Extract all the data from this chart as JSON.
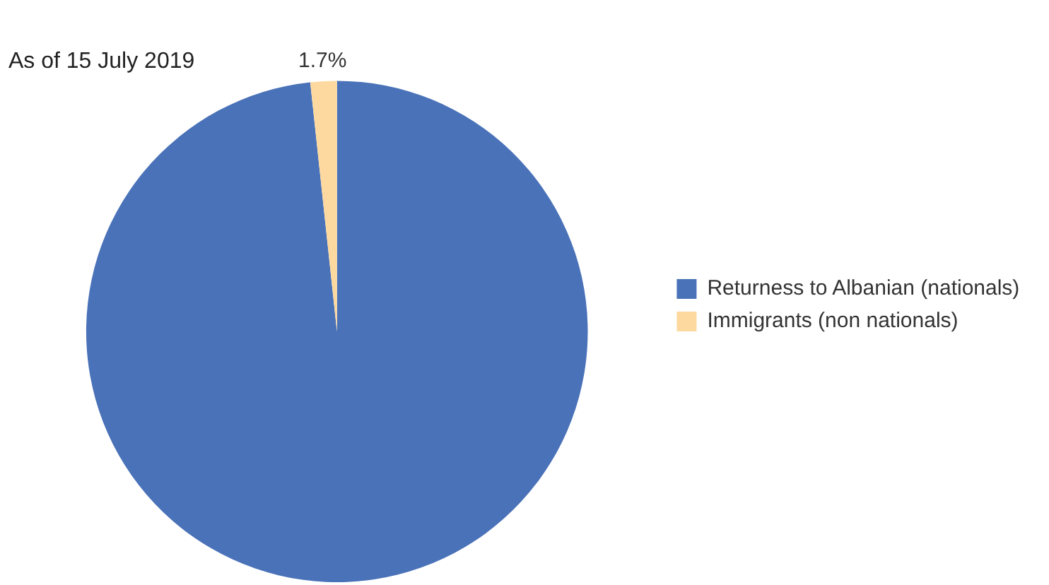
{
  "chart_data": {
    "type": "pie",
    "title": "As of 15 July 2019",
    "categories": [
      "Returness to Albanian (nationals)",
      "Immigrants (non nationals)"
    ],
    "values": [
      98.3,
      1.7
    ],
    "colors": [
      "#4a72b8",
      "#fdd9a0"
    ],
    "value_labels": [
      null,
      "1.7%"
    ],
    "legend": "right"
  }
}
